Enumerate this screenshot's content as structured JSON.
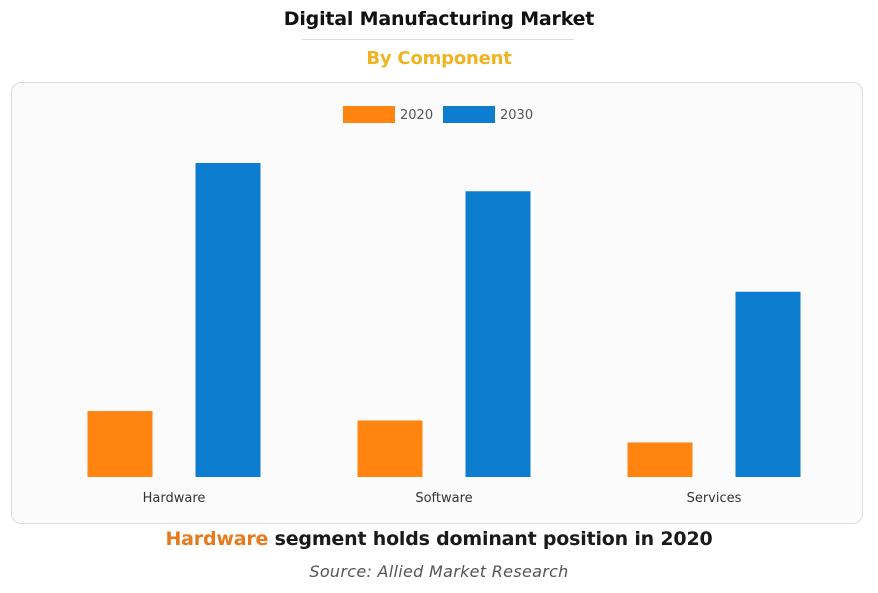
{
  "header": {
    "title": "Digital Manufacturing Market",
    "subtitle": "By Component"
  },
  "colors": {
    "subtitle": "#f0b323",
    "highlight": "#e87a1e",
    "series_2020": "#ff8410",
    "series_2030": "#0d7dd0",
    "axis_text": "#333333"
  },
  "chart_data": {
    "type": "bar",
    "title": "Digital Manufacturing Market",
    "subtitle": "By Component",
    "categories": [
      "Hardware",
      "Software",
      "Services"
    ],
    "series": [
      {
        "name": "2020",
        "values": [
          21,
          18,
          11
        ]
      },
      {
        "name": "2030",
        "values": [
          100,
          91,
          59
        ]
      }
    ],
    "ylim": [
      0,
      100
    ],
    "xlabel": "",
    "ylabel": "",
    "grid": false,
    "legend": "top-center"
  },
  "footer": {
    "caption_highlight": "Hardware",
    "caption_rest": " segment holds dominant position in 2020",
    "source": "Source: Allied Market Research"
  }
}
